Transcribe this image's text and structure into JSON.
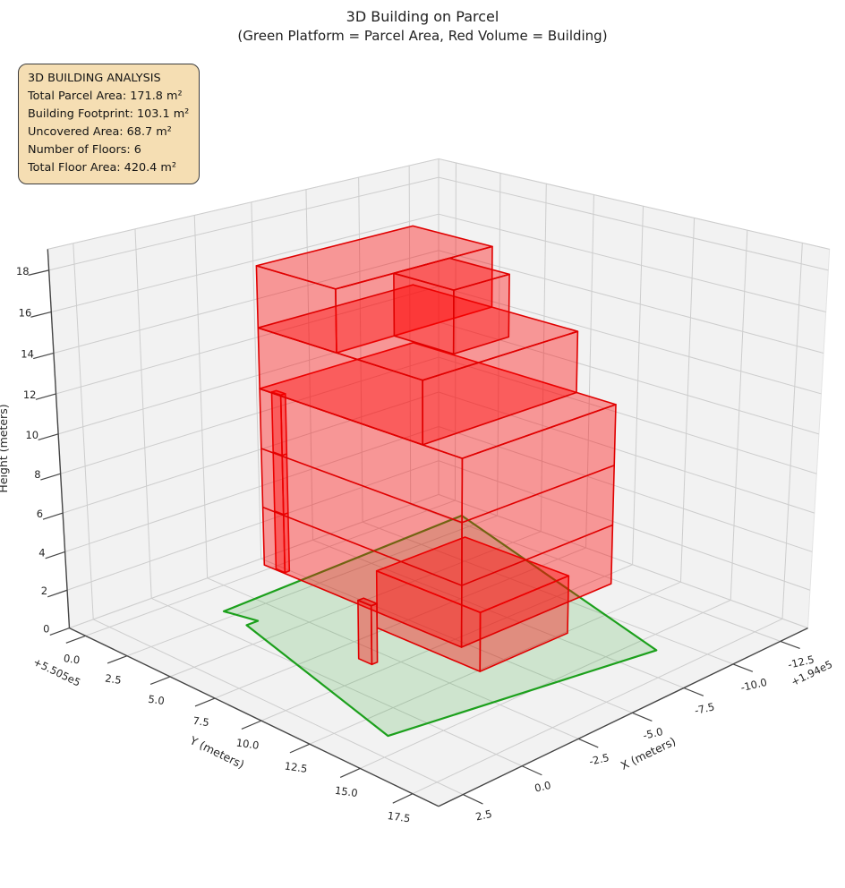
{
  "title": {
    "line1": "3D Building on Parcel",
    "line2": "(Green Platform = Parcel Area, Red Volume = Building)"
  },
  "info_box": {
    "heading": "3D BUILDING ANALYSIS",
    "lines": [
      "Total Parcel Area: 171.8 m²",
      "Building Footprint: 103.1 m²",
      "Uncovered Area: 68.7 m²",
      "Number of Floors: 6",
      "Total Floor Area: 420.4 m²"
    ],
    "bg_color": "#f5deb3",
    "border_color": "#3c3c3c"
  },
  "chart_data": {
    "type": "3d-building-plot",
    "axes": {
      "x": {
        "label": "X (meters)",
        "offset_text": "+1.94e5",
        "tick_labels": [
          "2.5",
          "0.0",
          "-2.5",
          "-5.0",
          "-7.5",
          "-10.0",
          "-12.5"
        ],
        "tick_values": [
          2.5,
          0,
          -2.5,
          -5,
          -7.5,
          -10,
          -12.5
        ],
        "range": [
          3.5,
          -14
        ]
      },
      "y": {
        "label": "Y (meters)",
        "offset_text": "+5.505e5",
        "tick_labels": [
          "0.0",
          "2.5",
          "5.0",
          "7.5",
          "10.0",
          "12.5",
          "15.0",
          "17.5"
        ],
        "tick_values": [
          0,
          2.5,
          5,
          7.5,
          10,
          12.5,
          15,
          17.5
        ],
        "range": [
          -1,
          18.7
        ]
      },
      "z": {
        "label": "Height (meters)",
        "tick_labels": [
          "0",
          "2",
          "4",
          "6",
          "8",
          "10",
          "12",
          "14",
          "16",
          "18"
        ],
        "tick_values": [
          0,
          2,
          4,
          6,
          8,
          10,
          12,
          14,
          16,
          18
        ],
        "range": [
          0,
          19
        ]
      }
    },
    "parcel": {
      "edge_color": "#1ca01c",
      "fill_color": "rgba(30,160,30,0.17)",
      "polygon_xy": [
        [
          -1,
          2
        ],
        [
          -1.3,
          3.6
        ],
        [
          -0.8,
          3.6
        ],
        [
          1.5,
          14
        ],
        [
          -9,
          16
        ],
        [
          -13,
          1.5
        ]
      ]
    },
    "building": {
      "edge_color": "#e00000",
      "face_color": "rgba(255,0,0,0.38)",
      "num_floors": 6,
      "floor_height_m": 3,
      "boxes": [
        {
          "name": "ground-floor",
          "x": [
            -8,
            -3.8
          ],
          "y": [
            7.2,
            12.6
          ],
          "z": [
            0,
            3
          ],
          "floor_lines": []
        },
        {
          "name": "entry-column",
          "x": [
            -1.95,
            -1.7
          ],
          "y": [
            8.7,
            9.4
          ],
          "z": [
            0,
            3
          ],
          "floor_lines": []
        },
        {
          "name": "corner-column",
          "x": [
            -1.75,
            -1.55
          ],
          "y": [
            4.4,
            4.9
          ],
          "z": [
            3,
            12
          ],
          "floor_lines": [
            6,
            9
          ]
        },
        {
          "name": "floors-2-4",
          "x": [
            -8.5,
            -1.5
          ],
          "y": [
            3.8,
            14.2
          ],
          "z": [
            3,
            12
          ],
          "floor_lines": [
            6,
            9
          ]
        },
        {
          "name": "floor-5",
          "x": [
            -8.5,
            -1.5
          ],
          "y": [
            3.8,
            12.3
          ],
          "z": [
            12,
            15
          ],
          "floor_lines": []
        },
        {
          "name": "floor-6-west",
          "x": [
            -8.5,
            -1.5
          ],
          "y": [
            3.8,
            8
          ],
          "z": [
            15,
            18
          ],
          "floor_lines": []
        },
        {
          "name": "floor-6-east",
          "x": [
            -6.5,
            -4
          ],
          "y": [
            8,
            11
          ],
          "z": [
            15,
            18
          ],
          "floor_lines": []
        }
      ]
    },
    "stats": {
      "total_parcel_area_m2": 171.8,
      "building_footprint_m2": 103.1,
      "uncovered_area_m2": 68.7,
      "num_floors": 6,
      "total_floor_area_m2": 420.4
    },
    "pane_color": "#f2f2f2",
    "grid_color": "#cdcdcd",
    "axis_color": "#454545",
    "tick_label_color": "#262626"
  }
}
